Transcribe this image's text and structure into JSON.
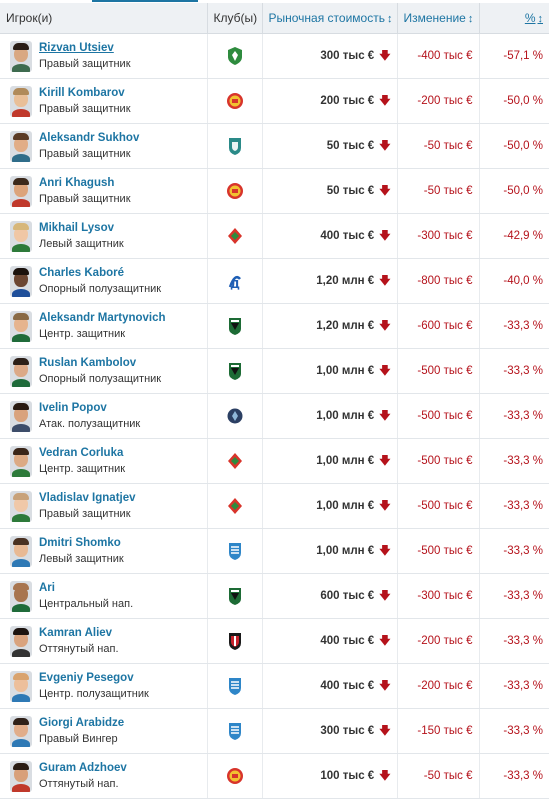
{
  "header": {
    "player": "Игрок(и)",
    "club": "Клуб(ы)",
    "market_value": "Рыночная стоимость",
    "change": "Изменение",
    "percent": "%",
    "sort_glyph": "↕"
  },
  "arrow_glyph": "🡇",
  "rows": [
    {
      "name": "Rizvan Utsiev",
      "position": "Правый защитник",
      "club_icon": "akhmat-crest-icon",
      "value": "300 тыс €",
      "change": "-400 тыс €",
      "percent": "-57,1 %",
      "skin": "#d9a882",
      "hair": "#2a1d16",
      "shirt": "#3e6b4f"
    },
    {
      "name": "Kirill Kombarov",
      "position": "Правый защитник",
      "club_icon": "arsenal-tula-crest-icon",
      "value": "200 тыс €",
      "change": "-200 тыс €",
      "percent": "-50,0 %",
      "skin": "#e9bf98",
      "hair": "#b08a5a",
      "shirt": "#c0392b"
    },
    {
      "name": "Aleksandr Sukhov",
      "position": "Правый защитник",
      "club_icon": "ufa-crest-icon",
      "value": "50 тыс €",
      "change": "-50 тыс €",
      "percent": "-50,0 %",
      "skin": "#e1ad87",
      "hair": "#5b3b25",
      "shirt": "#2f6d8a"
    },
    {
      "name": "Anri Khagush",
      "position": "Правый защитник",
      "club_icon": "arsenal-tula-crest-icon",
      "value": "50 тыс €",
      "change": "-50 тыс €",
      "percent": "-50,0 %",
      "skin": "#dca47b",
      "hair": "#3c2a1c",
      "shirt": "#c0392b"
    },
    {
      "name": "Mikhail Lysov",
      "position": "Левый защитник",
      "club_icon": "lokomotiv-crest-icon",
      "value": "400 тыс €",
      "change": "-300 тыс €",
      "percent": "-42,9 %",
      "skin": "#f0c7a5",
      "hair": "#d7b77a",
      "shirt": "#2d7a3a"
    },
    {
      "name": "Charles Kaboré",
      "position": "Опорный полузащитник",
      "club_icon": "dynamo-crest-icon",
      "value": "1,20 млн €",
      "change": "-800 тыс €",
      "percent": "-40,0 %",
      "skin": "#6b4632",
      "hair": "#1b120d",
      "shirt": "#1f4f9a"
    },
    {
      "name": "Aleksandr Martynovich",
      "position": "Центр. защитник",
      "club_icon": "krasnodar-crest-icon",
      "value": "1,20 млн €",
      "change": "-600 тыс €",
      "percent": "-33,3 %",
      "skin": "#e6b48e",
      "hair": "#8a6a45",
      "shirt": "#1f6b3a"
    },
    {
      "name": "Ruslan Kambolov",
      "position": "Опорный полузащитник",
      "club_icon": "krasnodar-crest-icon",
      "value": "1,00 млн €",
      "change": "-500 тыс €",
      "percent": "-33,3 %",
      "skin": "#dca987",
      "hair": "#2c1f18",
      "shirt": "#1f6b3a"
    },
    {
      "name": "Ivelin Popov",
      "position": "Атак. полузащитник",
      "club_icon": "rubin-crest-icon",
      "value": "1,00 млн €",
      "change": "-500 тыс €",
      "percent": "-33,3 %",
      "skin": "#d9a27c",
      "hair": "#2a1b12",
      "shirt": "#3d4d6a"
    },
    {
      "name": "Vedran Corluka",
      "position": "Центр. защитник",
      "club_icon": "lokomotiv-crest-icon",
      "value": "1,00 млн €",
      "change": "-500 тыс €",
      "percent": "-33,3 %",
      "skin": "#dcaa84",
      "hair": "#3a2619",
      "shirt": "#2d7a3a"
    },
    {
      "name": "Vladislav Ignatjev",
      "position": "Правый защитник",
      "club_icon": "lokomotiv-crest-icon",
      "value": "1,00 млн €",
      "change": "-500 тыс €",
      "percent": "-33,3 %",
      "skin": "#f0c8a8",
      "hair": "#c8a27a",
      "shirt": "#2d7a3a"
    },
    {
      "name": "Dmitri Shomko",
      "position": "Левый защитник",
      "club_icon": "rostov-crest-icon",
      "value": "1,00 млн €",
      "change": "-500 тыс €",
      "percent": "-33,3 %",
      "skin": "#e8b994",
      "hair": "#4a3222",
      "shirt": "#2e79b5"
    },
    {
      "name": "Ari",
      "position": "Центральный нап.",
      "club_icon": "krasnodar-crest-icon",
      "value": "600 тыс €",
      "change": "-300 тыс €",
      "percent": "-33,3 %",
      "skin": "#a8754f",
      "hair": "#a8754f",
      "shirt": "#1f6b3a"
    },
    {
      "name": "Kamran Aliev",
      "position": "Оттянутый нап.",
      "club_icon": "amkar-crest-icon",
      "value": "400 тыс €",
      "change": "-200 тыс €",
      "percent": "-33,3 %",
      "skin": "#d9a37e",
      "hair": "#1d1410",
      "shirt": "#333333"
    },
    {
      "name": "Evgeniy Pesegov",
      "position": "Центр. полузащитник",
      "club_icon": "rostov-crest-icon",
      "value": "400 тыс €",
      "change": "-200 тыс €",
      "percent": "-33,3 %",
      "skin": "#edbf9b",
      "hair": "#d9a36e",
      "shirt": "#2e79b5"
    },
    {
      "name": "Giorgi Arabidze",
      "position": "Правый Вингер",
      "club_icon": "rostov-crest-icon",
      "value": "300 тыс €",
      "change": "-150 тыс €",
      "percent": "-33,3 %",
      "skin": "#e1ad8a",
      "hair": "#2f2119",
      "shirt": "#2e79b5"
    },
    {
      "name": "Guram Adzhoev",
      "position": "Оттянутый нап.",
      "club_icon": "arsenal-tula-crest-icon",
      "value": "100 тыс €",
      "change": "-50 тыс €",
      "percent": "-33,3 %",
      "skin": "#d8a07a",
      "hair": "#2b1d14",
      "shirt": "#c0392b"
    }
  ]
}
